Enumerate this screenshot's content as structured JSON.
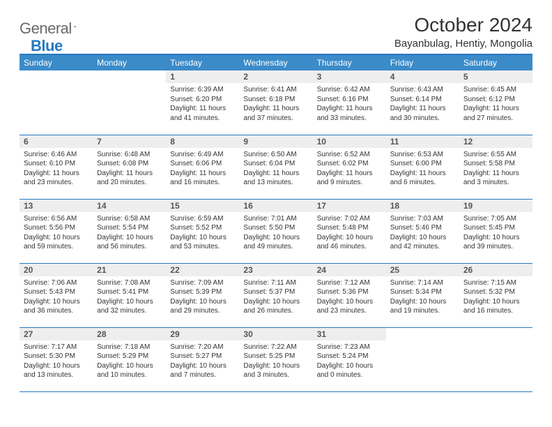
{
  "brand": {
    "part1": "General",
    "part2": "Blue"
  },
  "title": "October 2024",
  "location": "Bayanbulag, Hentiy, Mongolia",
  "colors": {
    "header_bg": "#3b8bc9",
    "border": "#2678bf",
    "daynum_bg": "#eeeeee",
    "text": "#333333"
  },
  "weekdays": [
    "Sunday",
    "Monday",
    "Tuesday",
    "Wednesday",
    "Thursday",
    "Friday",
    "Saturday"
  ],
  "weeks": [
    [
      null,
      null,
      {
        "n": "1",
        "sr": "Sunrise: 6:39 AM",
        "ss": "Sunset: 6:20 PM",
        "dl": "Daylight: 11 hours and 41 minutes."
      },
      {
        "n": "2",
        "sr": "Sunrise: 6:41 AM",
        "ss": "Sunset: 6:18 PM",
        "dl": "Daylight: 11 hours and 37 minutes."
      },
      {
        "n": "3",
        "sr": "Sunrise: 6:42 AM",
        "ss": "Sunset: 6:16 PM",
        "dl": "Daylight: 11 hours and 33 minutes."
      },
      {
        "n": "4",
        "sr": "Sunrise: 6:43 AM",
        "ss": "Sunset: 6:14 PM",
        "dl": "Daylight: 11 hours and 30 minutes."
      },
      {
        "n": "5",
        "sr": "Sunrise: 6:45 AM",
        "ss": "Sunset: 6:12 PM",
        "dl": "Daylight: 11 hours and 27 minutes."
      }
    ],
    [
      {
        "n": "6",
        "sr": "Sunrise: 6:46 AM",
        "ss": "Sunset: 6:10 PM",
        "dl": "Daylight: 11 hours and 23 minutes."
      },
      {
        "n": "7",
        "sr": "Sunrise: 6:48 AM",
        "ss": "Sunset: 6:08 PM",
        "dl": "Daylight: 11 hours and 20 minutes."
      },
      {
        "n": "8",
        "sr": "Sunrise: 6:49 AM",
        "ss": "Sunset: 6:06 PM",
        "dl": "Daylight: 11 hours and 16 minutes."
      },
      {
        "n": "9",
        "sr": "Sunrise: 6:50 AM",
        "ss": "Sunset: 6:04 PM",
        "dl": "Daylight: 11 hours and 13 minutes."
      },
      {
        "n": "10",
        "sr": "Sunrise: 6:52 AM",
        "ss": "Sunset: 6:02 PM",
        "dl": "Daylight: 11 hours and 9 minutes."
      },
      {
        "n": "11",
        "sr": "Sunrise: 6:53 AM",
        "ss": "Sunset: 6:00 PM",
        "dl": "Daylight: 11 hours and 6 minutes."
      },
      {
        "n": "12",
        "sr": "Sunrise: 6:55 AM",
        "ss": "Sunset: 5:58 PM",
        "dl": "Daylight: 11 hours and 3 minutes."
      }
    ],
    [
      {
        "n": "13",
        "sr": "Sunrise: 6:56 AM",
        "ss": "Sunset: 5:56 PM",
        "dl": "Daylight: 10 hours and 59 minutes."
      },
      {
        "n": "14",
        "sr": "Sunrise: 6:58 AM",
        "ss": "Sunset: 5:54 PM",
        "dl": "Daylight: 10 hours and 56 minutes."
      },
      {
        "n": "15",
        "sr": "Sunrise: 6:59 AM",
        "ss": "Sunset: 5:52 PM",
        "dl": "Daylight: 10 hours and 53 minutes."
      },
      {
        "n": "16",
        "sr": "Sunrise: 7:01 AM",
        "ss": "Sunset: 5:50 PM",
        "dl": "Daylight: 10 hours and 49 minutes."
      },
      {
        "n": "17",
        "sr": "Sunrise: 7:02 AM",
        "ss": "Sunset: 5:48 PM",
        "dl": "Daylight: 10 hours and 46 minutes."
      },
      {
        "n": "18",
        "sr": "Sunrise: 7:03 AM",
        "ss": "Sunset: 5:46 PM",
        "dl": "Daylight: 10 hours and 42 minutes."
      },
      {
        "n": "19",
        "sr": "Sunrise: 7:05 AM",
        "ss": "Sunset: 5:45 PM",
        "dl": "Daylight: 10 hours and 39 minutes."
      }
    ],
    [
      {
        "n": "20",
        "sr": "Sunrise: 7:06 AM",
        "ss": "Sunset: 5:43 PM",
        "dl": "Daylight: 10 hours and 36 minutes."
      },
      {
        "n": "21",
        "sr": "Sunrise: 7:08 AM",
        "ss": "Sunset: 5:41 PM",
        "dl": "Daylight: 10 hours and 32 minutes."
      },
      {
        "n": "22",
        "sr": "Sunrise: 7:09 AM",
        "ss": "Sunset: 5:39 PM",
        "dl": "Daylight: 10 hours and 29 minutes."
      },
      {
        "n": "23",
        "sr": "Sunrise: 7:11 AM",
        "ss": "Sunset: 5:37 PM",
        "dl": "Daylight: 10 hours and 26 minutes."
      },
      {
        "n": "24",
        "sr": "Sunrise: 7:12 AM",
        "ss": "Sunset: 5:36 PM",
        "dl": "Daylight: 10 hours and 23 minutes."
      },
      {
        "n": "25",
        "sr": "Sunrise: 7:14 AM",
        "ss": "Sunset: 5:34 PM",
        "dl": "Daylight: 10 hours and 19 minutes."
      },
      {
        "n": "26",
        "sr": "Sunrise: 7:15 AM",
        "ss": "Sunset: 5:32 PM",
        "dl": "Daylight: 10 hours and 16 minutes."
      }
    ],
    [
      {
        "n": "27",
        "sr": "Sunrise: 7:17 AM",
        "ss": "Sunset: 5:30 PM",
        "dl": "Daylight: 10 hours and 13 minutes."
      },
      {
        "n": "28",
        "sr": "Sunrise: 7:18 AM",
        "ss": "Sunset: 5:29 PM",
        "dl": "Daylight: 10 hours and 10 minutes."
      },
      {
        "n": "29",
        "sr": "Sunrise: 7:20 AM",
        "ss": "Sunset: 5:27 PM",
        "dl": "Daylight: 10 hours and 7 minutes."
      },
      {
        "n": "30",
        "sr": "Sunrise: 7:22 AM",
        "ss": "Sunset: 5:25 PM",
        "dl": "Daylight: 10 hours and 3 minutes."
      },
      {
        "n": "31",
        "sr": "Sunrise: 7:23 AM",
        "ss": "Sunset: 5:24 PM",
        "dl": "Daylight: 10 hours and 0 minutes."
      },
      null,
      null
    ]
  ]
}
